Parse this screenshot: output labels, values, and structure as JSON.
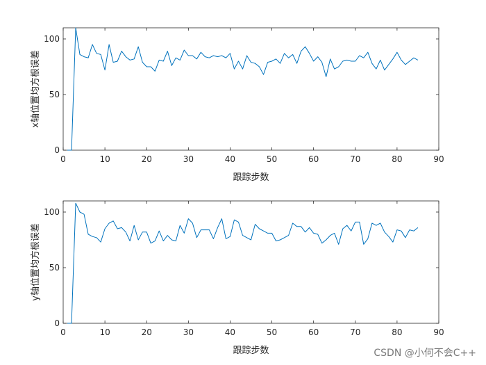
{
  "chart_data": [
    {
      "type": "line",
      "xlabel": "跟踪步数",
      "ylabel": "x轴位置均方根误差",
      "xlim": [
        0,
        90
      ],
      "ylim": [
        0,
        110
      ],
      "xticks": [
        0,
        10,
        20,
        30,
        40,
        50,
        60,
        70,
        80,
        90
      ],
      "yticks": [
        0,
        50,
        100
      ],
      "grid": false,
      "color": "#0072BD",
      "series": [
        {
          "x": [
            1,
            2,
            3,
            4,
            5,
            6,
            7,
            8,
            9,
            10,
            11,
            12,
            13,
            14,
            15,
            16,
            17,
            18,
            19,
            20,
            21,
            22,
            23,
            24,
            25,
            26,
            27,
            28,
            29,
            30,
            31,
            32,
            33,
            34,
            35,
            36,
            37,
            38,
            39,
            40,
            41,
            42,
            43,
            44,
            45,
            46,
            47,
            48,
            49,
            50,
            51,
            52,
            53,
            54,
            55,
            56,
            57,
            58,
            59,
            60,
            61,
            62,
            63,
            64,
            65,
            66,
            67,
            68,
            69,
            70,
            71,
            72,
            73,
            74,
            75,
            76,
            77,
            78,
            79,
            80,
            81,
            82,
            83,
            84,
            85
          ],
          "values": [
            0,
            0,
            110,
            86,
            84,
            83,
            95,
            87,
            86,
            72,
            95,
            79,
            80,
            89,
            84,
            81,
            82,
            93,
            79,
            75,
            75,
            71,
            81,
            80,
            89,
            76,
            83,
            81,
            90,
            85,
            85,
            82,
            88,
            84,
            83,
            85,
            84,
            85,
            83,
            87,
            73,
            80,
            73,
            85,
            79,
            78,
            75,
            68,
            79,
            80,
            82,
            78,
            87,
            83,
            86,
            78,
            89,
            93,
            87,
            80,
            84,
            79,
            66,
            82,
            73,
            75,
            80,
            81,
            80,
            80,
            85,
            83,
            88,
            78,
            73,
            81,
            72,
            77,
            82,
            88,
            81,
            77,
            80,
            83,
            81
          ]
        }
      ]
    },
    {
      "type": "line",
      "xlabel": "跟踪步数",
      "ylabel": "y轴位置均方根误差",
      "xlim": [
        0,
        90
      ],
      "ylim": [
        0,
        110
      ],
      "xticks": [
        0,
        10,
        20,
        30,
        40,
        50,
        60,
        70,
        80,
        90
      ],
      "yticks": [
        0,
        50,
        100
      ],
      "grid": false,
      "color": "#0072BD",
      "series": [
        {
          "x": [
            1,
            2,
            3,
            4,
            5,
            6,
            7,
            8,
            9,
            10,
            11,
            12,
            13,
            14,
            15,
            16,
            17,
            18,
            19,
            20,
            21,
            22,
            23,
            24,
            25,
            26,
            27,
            28,
            29,
            30,
            31,
            32,
            33,
            34,
            35,
            36,
            37,
            38,
            39,
            40,
            41,
            42,
            43,
            44,
            45,
            46,
            47,
            48,
            49,
            50,
            51,
            52,
            53,
            54,
            55,
            56,
            57,
            58,
            59,
            60,
            61,
            62,
            63,
            64,
            65,
            66,
            67,
            68,
            69,
            70,
            71,
            72,
            73,
            74,
            75,
            76,
            77,
            78,
            79,
            80,
            81,
            82,
            83,
            84,
            85
          ],
          "values": [
            0,
            0,
            108,
            100,
            98,
            80,
            78,
            77,
            73,
            85,
            90,
            92,
            85,
            86,
            82,
            74,
            88,
            75,
            82,
            82,
            72,
            74,
            83,
            74,
            79,
            75,
            74,
            88,
            81,
            94,
            90,
            77,
            84,
            84,
            84,
            76,
            86,
            94,
            76,
            78,
            93,
            91,
            79,
            77,
            75,
            89,
            85,
            83,
            81,
            81,
            74,
            75,
            77,
            79,
            90,
            87,
            87,
            82,
            86,
            81,
            80,
            72,
            75,
            79,
            81,
            71,
            85,
            88,
            83,
            91,
            91,
            71,
            76,
            90,
            88,
            90,
            82,
            78,
            73,
            84,
            83,
            77,
            84,
            83,
            86
          ]
        }
      ]
    }
  ],
  "watermark": "CSDN @小何不会C++"
}
